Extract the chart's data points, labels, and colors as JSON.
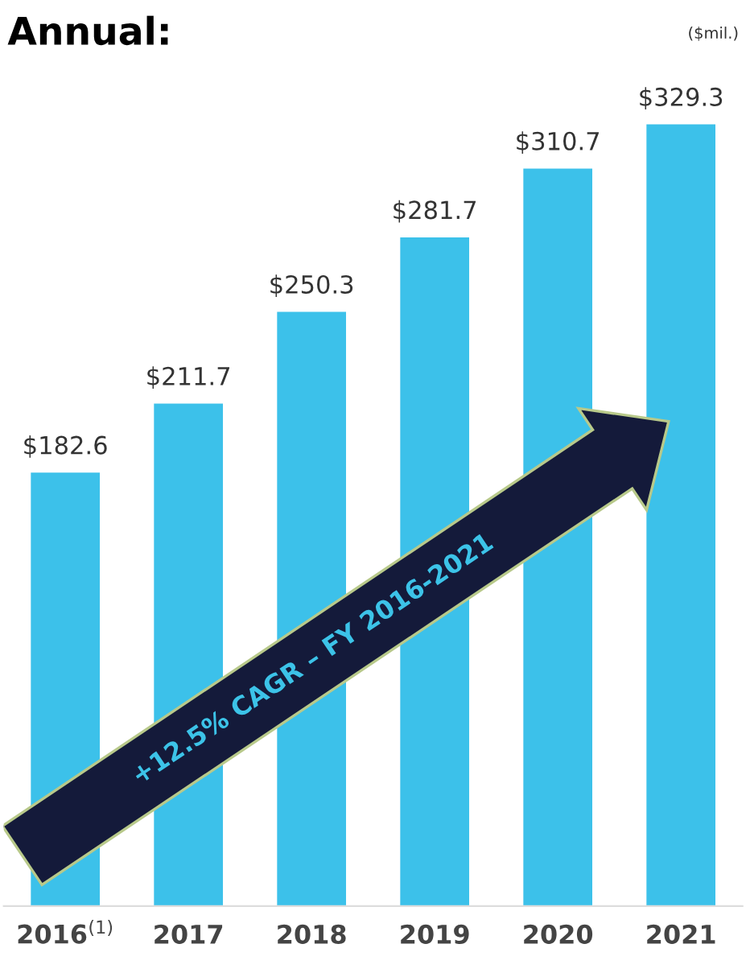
{
  "chart_data": {
    "type": "bar",
    "title": "Annual:",
    "categories": [
      "2016$^{(1)}$",
      "2017",
      "2018",
      "2019",
      "2020",
      "2021"
    ],
    "values": [
      182.6,
      211.7,
      250.3,
      281.7,
      310.7,
      329.3
    ],
    "value_labels": [
      "$182.6",
      "$211.7",
      "$250.3",
      "$281.7",
      "$310.7",
      "$329.3"
    ],
    "color": "#3cc1ea",
    "annotations": [
      "($mil.)",
      "+12.5% CAGR – FY 2016-2021"
    ],
    "grid": false,
    "legend": false
  }
}
